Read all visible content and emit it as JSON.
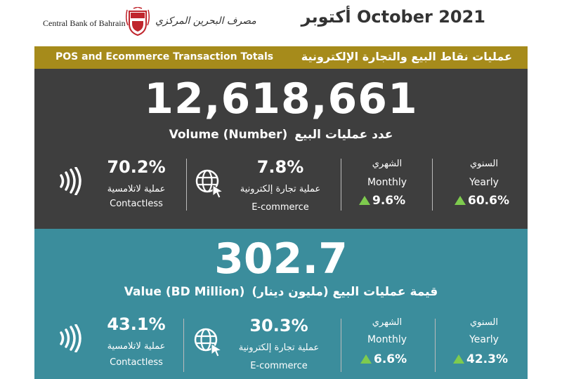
{
  "header": {
    "brand_en": "Central Bank of Bahrain",
    "brand_ar": "مصرف البحرين المركزي",
    "month_title": "أكتوبر October 2021"
  },
  "banner": {
    "title_en": "POS and Ecommerce Transaction Totals",
    "title_ar": "عمليات نقاط البيع والتجارة الإلكترونية"
  },
  "volume": {
    "total": "12,618,661",
    "label_en": "Volume (Number)",
    "label_ar": "عدد عمليات البيع",
    "contactless": {
      "pct": "70.2%",
      "label_ar": "عملية لاتلامسية",
      "label_en": "Contactless"
    },
    "ecommerce": {
      "pct": "7.8%",
      "label_ar": "عملية تجارة إلكترونية",
      "label_en": "E-commerce"
    },
    "monthly": {
      "label_ar": "الشهري",
      "label_en": "Monthly",
      "change": "9.6%"
    },
    "yearly": {
      "label_ar": "السنوي",
      "label_en": "Yearly",
      "change": "60.6%"
    }
  },
  "value": {
    "total": "302.7",
    "label_en": "Value (BD Million)",
    "label_ar": "قيمة عمليات البيع (مليون دينار)",
    "contactless": {
      "pct": "43.1%",
      "label_ar": "عملية لاتلامسية",
      "label_en": "Contactless"
    },
    "ecommerce": {
      "pct": "30.3%",
      "label_ar": "عملية تجارة إلكترونية",
      "label_en": "E-commerce"
    },
    "monthly": {
      "label_ar": "الشهري",
      "label_en": "Monthly",
      "change": "6.6%"
    },
    "yearly": {
      "label_ar": "السنوي",
      "label_en": "Yearly",
      "change": "42.3%"
    }
  },
  "colors": {
    "gold": "#a68b1b",
    "dark": "#3e3e3e",
    "teal": "#3b8d9c",
    "up": "#7ecb4e"
  },
  "icons": [
    "bank-emblem-icon",
    "contactless-icon",
    "globe-cursor-icon",
    "up-triangle-icon"
  ]
}
